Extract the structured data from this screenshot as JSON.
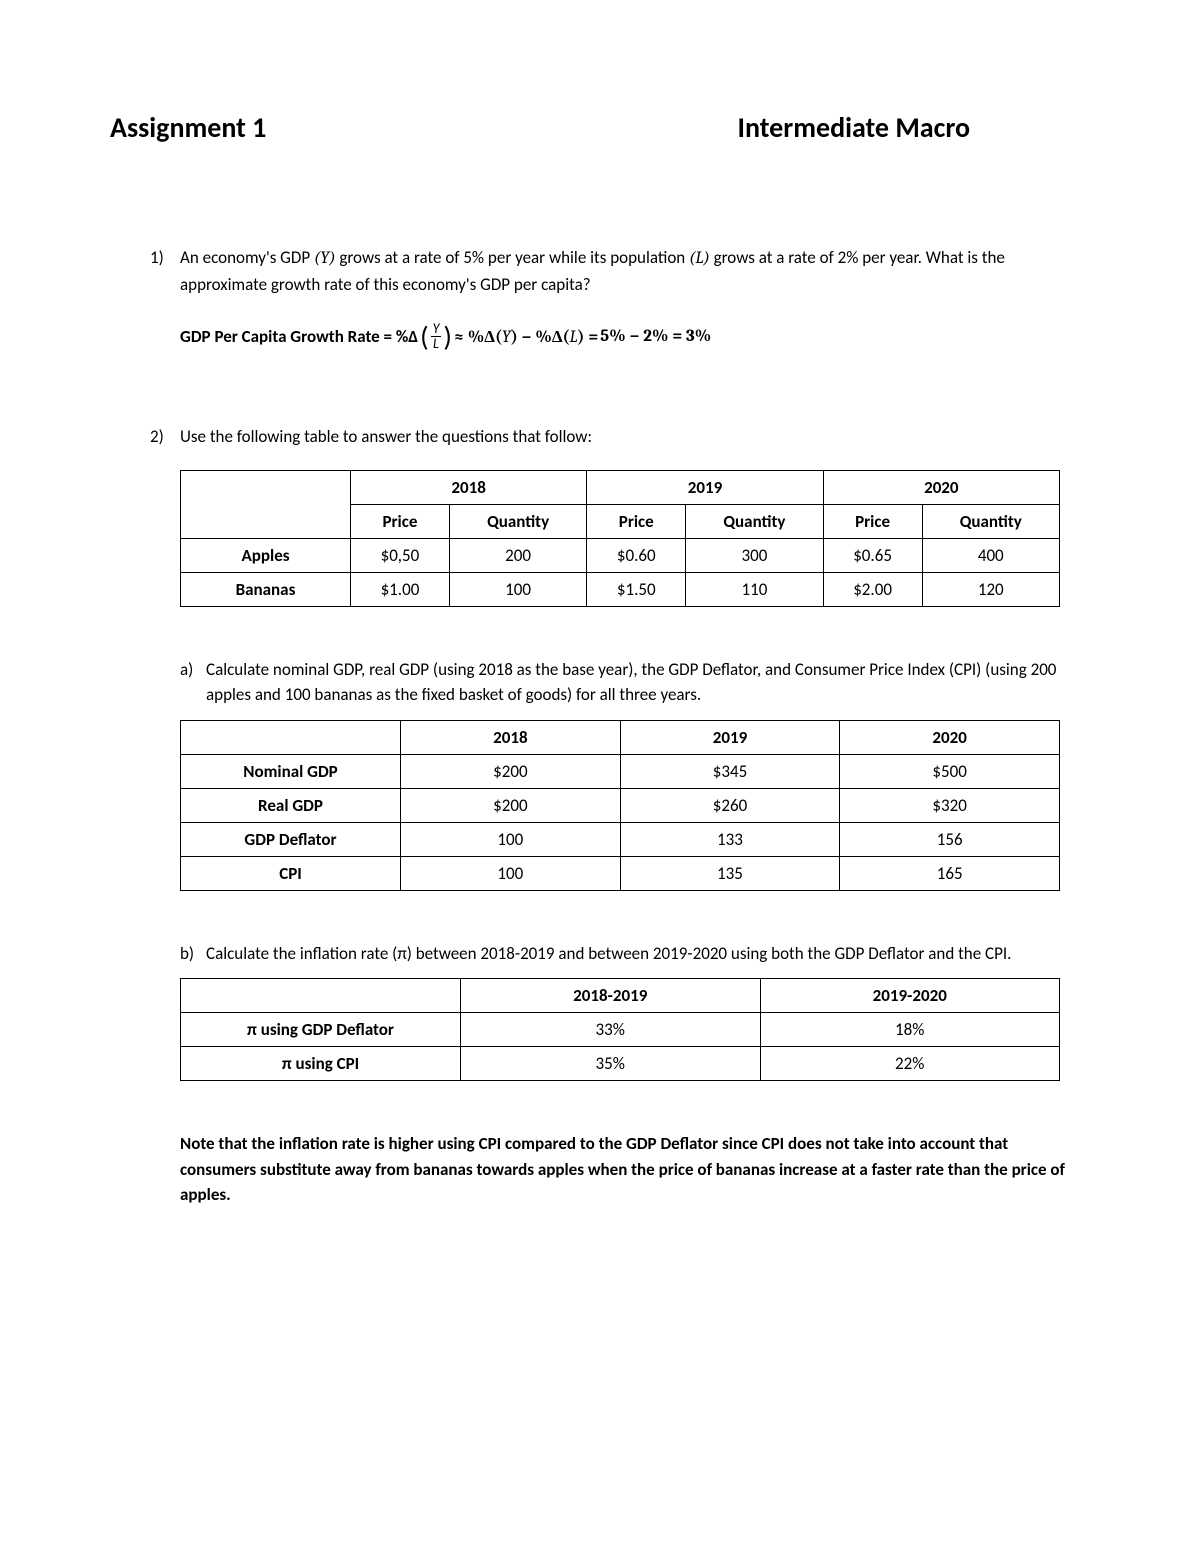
{
  "header": {
    "left": "Assignment 1",
    "right": "Intermediate Macro"
  },
  "q1": {
    "num": "1)",
    "text": "An economy's GDP (Y) grows at a rate of 5% per year while its population (L) grows at a rate of 2% per year. What is the approximate growth rate of this economy's GDP per capita?",
    "formula_label": "GDP Per Capita Growth Rate = %Δ",
    "frac_top": "Y",
    "frac_bot": "L",
    "approx": " ≈ %Δ(Y) − %Δ(L) = ",
    "result": "5% − 2% =  3%"
  },
  "q2": {
    "num": "2)",
    "text": "Use the following table to answer the questions that follow:"
  },
  "table1": {
    "years": [
      "2018",
      "2019",
      "2020"
    ],
    "subheads": [
      "Price",
      "Quantity",
      "Price",
      "Quantity",
      "Price",
      "Quantity"
    ],
    "rows": [
      {
        "label": "Apples",
        "cells": [
          "$0,50",
          "200",
          "$0.60",
          "300",
          "$0.65",
          "400"
        ]
      },
      {
        "label": "Bananas",
        "cells": [
          "$1.00",
          "100",
          "$1.50",
          "110",
          "$2.00",
          "120"
        ]
      }
    ]
  },
  "q2a": {
    "num": "a)",
    "text": "Calculate nominal GDP, real GDP (using 2018 as the base year), the GDP Deflator, and Consumer Price Index (CPI) (using 200 apples and 100 bananas as the fixed basket of goods) for all three years."
  },
  "table2": {
    "headers": [
      "",
      "2018",
      "2019",
      "2020"
    ],
    "rows": [
      {
        "label": "Nominal GDP",
        "cells": [
          "$200",
          "$345",
          "$500"
        ]
      },
      {
        "label": "Real GDP",
        "cells": [
          "$200",
          "$260",
          "$320"
        ]
      },
      {
        "label": "GDP Deflator",
        "cells": [
          "100",
          "133",
          "156"
        ]
      },
      {
        "label": "CPI",
        "cells": [
          "100",
          "135",
          "165"
        ]
      }
    ]
  },
  "q2b": {
    "num": "b)",
    "text": "Calculate the inflation rate (π) between 2018-2019 and between 2019-2020 using both the GDP Deflator and the CPI."
  },
  "table3": {
    "headers": [
      "",
      "2018-2019",
      "2019-2020"
    ],
    "rows": [
      {
        "label": "π using GDP Deflator",
        "cells": [
          "33%",
          "18%"
        ]
      },
      {
        "label": "π using CPI",
        "cells": [
          "35%",
          "22%"
        ]
      }
    ]
  },
  "note": "Note that the inflation rate is higher using CPI compared to the GDP Deflator since CPI does not take into account that consumers substitute away from bananas towards apples when the price of bananas increase at a faster rate than the price of apples."
}
